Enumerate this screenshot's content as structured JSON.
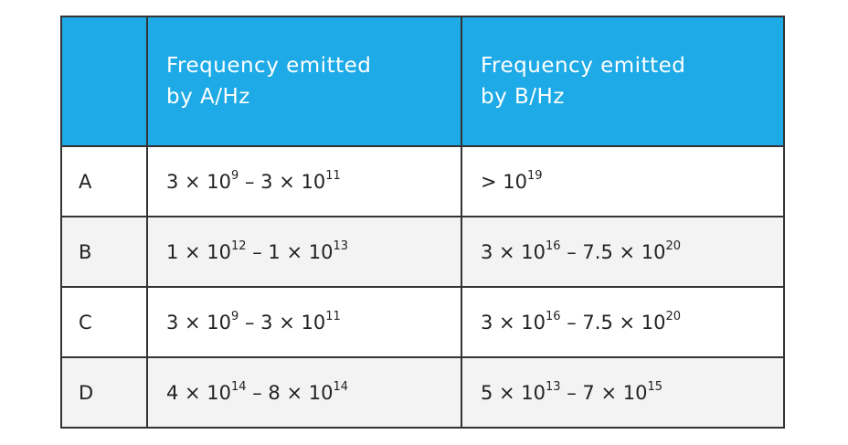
{
  "table": {
    "header": [
      "Frequency emitted by A/Hz",
      "Frequency emitted by B/Hz"
    ],
    "rows": [
      {
        "label": "A",
        "a": [
          {
            "text": "3 × 10",
            "sup": "9"
          },
          {
            "text": " – 3 × 10",
            "sup": "11"
          }
        ],
        "b": [
          {
            "text": "> 10",
            "sup": "19"
          }
        ]
      },
      {
        "label": "B",
        "a": [
          {
            "text": "1 × 10",
            "sup": "12"
          },
          {
            "text": " – 1 × 10",
            "sup": "13"
          }
        ],
        "b": [
          {
            "text": "3 × 10",
            "sup": "16"
          },
          {
            "text": " – 7.5 × 10",
            "sup": "20"
          }
        ]
      },
      {
        "label": "C",
        "a": [
          {
            "text": "3 × 10",
            "sup": "9"
          },
          {
            "text": " – 3 × 10",
            "sup": "11"
          }
        ],
        "b": [
          {
            "text": "3 × 10",
            "sup": "16"
          },
          {
            "text": " – 7.5 × 10",
            "sup": "20"
          }
        ]
      },
      {
        "label": "D",
        "a": [
          {
            "text": "4 × 10",
            "sup": "14"
          },
          {
            "text": " – 8 × 10",
            "sup": "14"
          }
        ],
        "b": [
          {
            "text": "5 × 10",
            "sup": "13"
          },
          {
            "text": " – 7 × 10",
            "sup": "15"
          }
        ]
      }
    ]
  }
}
